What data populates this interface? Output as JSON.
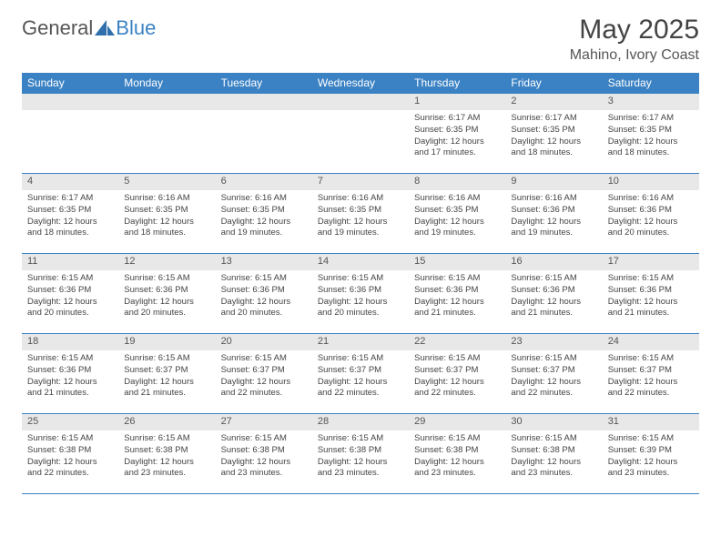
{
  "colors": {
    "header_blue": "#3b82c4",
    "stripe_gray": "#e8e8e8",
    "border_blue": "#3b82c4",
    "text_dark": "#333333",
    "background": "#ffffff"
  },
  "logo": {
    "part1": "General",
    "part2": "Blue"
  },
  "title": {
    "month": "May 2025",
    "location": "Mahino, Ivory Coast"
  },
  "weekdays": [
    "Sunday",
    "Monday",
    "Tuesday",
    "Wednesday",
    "Thursday",
    "Friday",
    "Saturday"
  ],
  "weeks": [
    [
      {
        "day": "",
        "sunrise": "",
        "sunset": "",
        "daylight": ""
      },
      {
        "day": "",
        "sunrise": "",
        "sunset": "",
        "daylight": ""
      },
      {
        "day": "",
        "sunrise": "",
        "sunset": "",
        "daylight": ""
      },
      {
        "day": "",
        "sunrise": "",
        "sunset": "",
        "daylight": ""
      },
      {
        "day": "1",
        "sunrise": "Sunrise: 6:17 AM",
        "sunset": "Sunset: 6:35 PM",
        "daylight": "Daylight: 12 hours and 17 minutes."
      },
      {
        "day": "2",
        "sunrise": "Sunrise: 6:17 AM",
        "sunset": "Sunset: 6:35 PM",
        "daylight": "Daylight: 12 hours and 18 minutes."
      },
      {
        "day": "3",
        "sunrise": "Sunrise: 6:17 AM",
        "sunset": "Sunset: 6:35 PM",
        "daylight": "Daylight: 12 hours and 18 minutes."
      }
    ],
    [
      {
        "day": "4",
        "sunrise": "Sunrise: 6:17 AM",
        "sunset": "Sunset: 6:35 PM",
        "daylight": "Daylight: 12 hours and 18 minutes."
      },
      {
        "day": "5",
        "sunrise": "Sunrise: 6:16 AM",
        "sunset": "Sunset: 6:35 PM",
        "daylight": "Daylight: 12 hours and 18 minutes."
      },
      {
        "day": "6",
        "sunrise": "Sunrise: 6:16 AM",
        "sunset": "Sunset: 6:35 PM",
        "daylight": "Daylight: 12 hours and 19 minutes."
      },
      {
        "day": "7",
        "sunrise": "Sunrise: 6:16 AM",
        "sunset": "Sunset: 6:35 PM",
        "daylight": "Daylight: 12 hours and 19 minutes."
      },
      {
        "day": "8",
        "sunrise": "Sunrise: 6:16 AM",
        "sunset": "Sunset: 6:35 PM",
        "daylight": "Daylight: 12 hours and 19 minutes."
      },
      {
        "day": "9",
        "sunrise": "Sunrise: 6:16 AM",
        "sunset": "Sunset: 6:36 PM",
        "daylight": "Daylight: 12 hours and 19 minutes."
      },
      {
        "day": "10",
        "sunrise": "Sunrise: 6:16 AM",
        "sunset": "Sunset: 6:36 PM",
        "daylight": "Daylight: 12 hours and 20 minutes."
      }
    ],
    [
      {
        "day": "11",
        "sunrise": "Sunrise: 6:15 AM",
        "sunset": "Sunset: 6:36 PM",
        "daylight": "Daylight: 12 hours and 20 minutes."
      },
      {
        "day": "12",
        "sunrise": "Sunrise: 6:15 AM",
        "sunset": "Sunset: 6:36 PM",
        "daylight": "Daylight: 12 hours and 20 minutes."
      },
      {
        "day": "13",
        "sunrise": "Sunrise: 6:15 AM",
        "sunset": "Sunset: 6:36 PM",
        "daylight": "Daylight: 12 hours and 20 minutes."
      },
      {
        "day": "14",
        "sunrise": "Sunrise: 6:15 AM",
        "sunset": "Sunset: 6:36 PM",
        "daylight": "Daylight: 12 hours and 20 minutes."
      },
      {
        "day": "15",
        "sunrise": "Sunrise: 6:15 AM",
        "sunset": "Sunset: 6:36 PM",
        "daylight": "Daylight: 12 hours and 21 minutes."
      },
      {
        "day": "16",
        "sunrise": "Sunrise: 6:15 AM",
        "sunset": "Sunset: 6:36 PM",
        "daylight": "Daylight: 12 hours and 21 minutes."
      },
      {
        "day": "17",
        "sunrise": "Sunrise: 6:15 AM",
        "sunset": "Sunset: 6:36 PM",
        "daylight": "Daylight: 12 hours and 21 minutes."
      }
    ],
    [
      {
        "day": "18",
        "sunrise": "Sunrise: 6:15 AM",
        "sunset": "Sunset: 6:36 PM",
        "daylight": "Daylight: 12 hours and 21 minutes."
      },
      {
        "day": "19",
        "sunrise": "Sunrise: 6:15 AM",
        "sunset": "Sunset: 6:37 PM",
        "daylight": "Daylight: 12 hours and 21 minutes."
      },
      {
        "day": "20",
        "sunrise": "Sunrise: 6:15 AM",
        "sunset": "Sunset: 6:37 PM",
        "daylight": "Daylight: 12 hours and 22 minutes."
      },
      {
        "day": "21",
        "sunrise": "Sunrise: 6:15 AM",
        "sunset": "Sunset: 6:37 PM",
        "daylight": "Daylight: 12 hours and 22 minutes."
      },
      {
        "day": "22",
        "sunrise": "Sunrise: 6:15 AM",
        "sunset": "Sunset: 6:37 PM",
        "daylight": "Daylight: 12 hours and 22 minutes."
      },
      {
        "day": "23",
        "sunrise": "Sunrise: 6:15 AM",
        "sunset": "Sunset: 6:37 PM",
        "daylight": "Daylight: 12 hours and 22 minutes."
      },
      {
        "day": "24",
        "sunrise": "Sunrise: 6:15 AM",
        "sunset": "Sunset: 6:37 PM",
        "daylight": "Daylight: 12 hours and 22 minutes."
      }
    ],
    [
      {
        "day": "25",
        "sunrise": "Sunrise: 6:15 AM",
        "sunset": "Sunset: 6:38 PM",
        "daylight": "Daylight: 12 hours and 22 minutes."
      },
      {
        "day": "26",
        "sunrise": "Sunrise: 6:15 AM",
        "sunset": "Sunset: 6:38 PM",
        "daylight": "Daylight: 12 hours and 23 minutes."
      },
      {
        "day": "27",
        "sunrise": "Sunrise: 6:15 AM",
        "sunset": "Sunset: 6:38 PM",
        "daylight": "Daylight: 12 hours and 23 minutes."
      },
      {
        "day": "28",
        "sunrise": "Sunrise: 6:15 AM",
        "sunset": "Sunset: 6:38 PM",
        "daylight": "Daylight: 12 hours and 23 minutes."
      },
      {
        "day": "29",
        "sunrise": "Sunrise: 6:15 AM",
        "sunset": "Sunset: 6:38 PM",
        "daylight": "Daylight: 12 hours and 23 minutes."
      },
      {
        "day": "30",
        "sunrise": "Sunrise: 6:15 AM",
        "sunset": "Sunset: 6:38 PM",
        "daylight": "Daylight: 12 hours and 23 minutes."
      },
      {
        "day": "31",
        "sunrise": "Sunrise: 6:15 AM",
        "sunset": "Sunset: 6:39 PM",
        "daylight": "Daylight: 12 hours and 23 minutes."
      }
    ]
  ]
}
